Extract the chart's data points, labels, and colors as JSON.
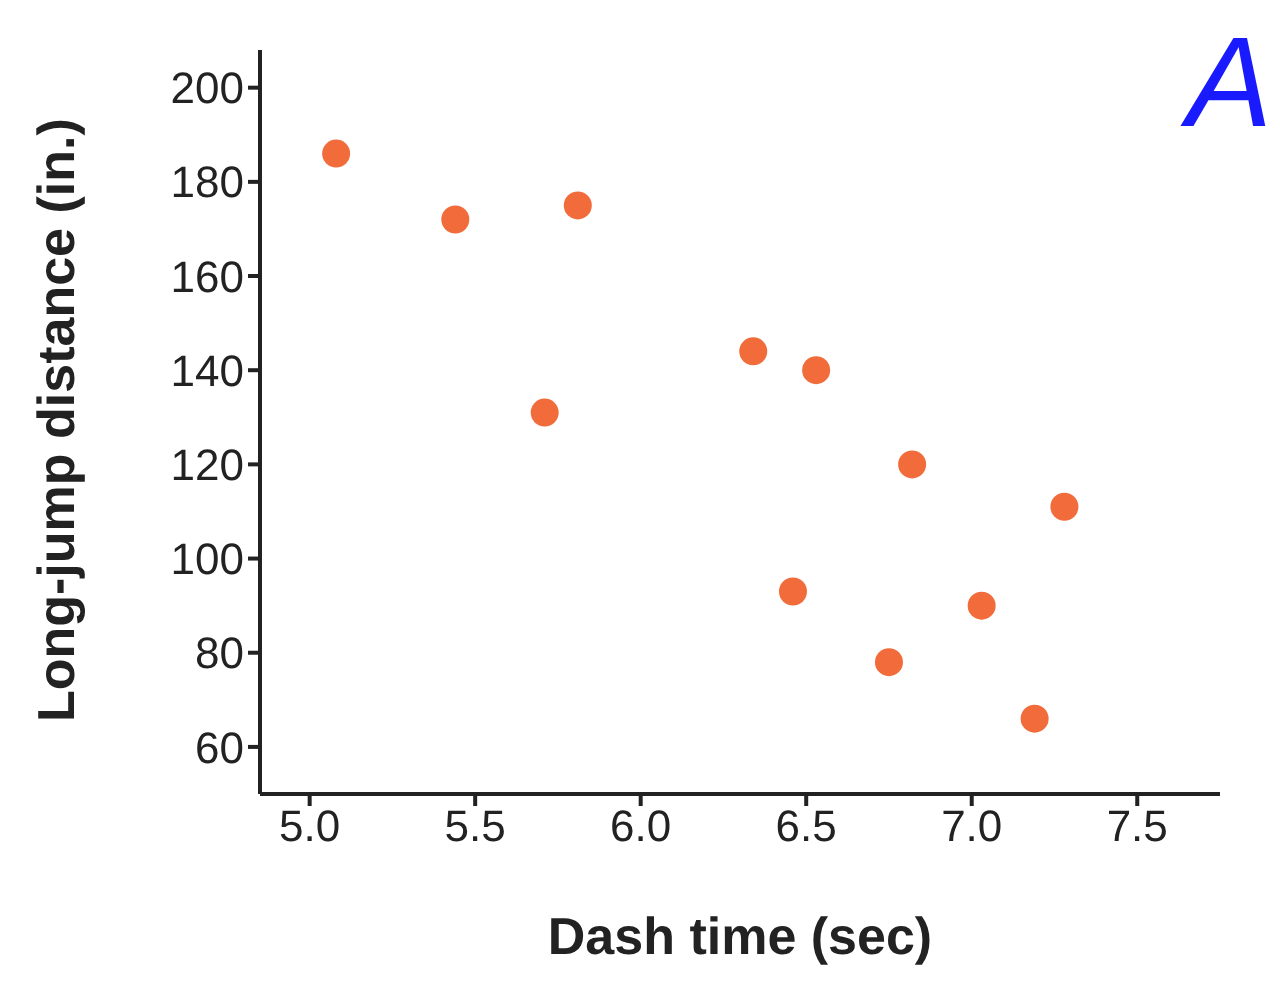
{
  "chart_data": {
    "type": "scatter",
    "xlabel": "Dash time (sec)",
    "ylabel": "Long-jump distance (in.)",
    "annotations": [
      "A"
    ],
    "x": [
      5.08,
      5.44,
      5.81,
      5.71,
      6.34,
      6.53,
      6.82,
      7.28,
      6.46,
      7.03,
      6.75,
      7.19
    ],
    "values": [
      186,
      172,
      175,
      131,
      144,
      140,
      120,
      111,
      93,
      90,
      78,
      66
    ],
    "color": "#f26b3a",
    "marker": "circle",
    "grid": false,
    "legend": false,
    "xlim": [
      4.85,
      7.75
    ],
    "xticks": [
      {
        "value": 5,
        "label": "5.0"
      },
      {
        "value": 5.5,
        "label": "5.5"
      },
      {
        "value": 6,
        "label": "6.0"
      },
      {
        "value": 6.5,
        "label": "6.5"
      },
      {
        "value": 7,
        "label": "7.0"
      },
      {
        "value": 7.5,
        "label": "7.5"
      }
    ],
    "ylim": [
      50,
      208
    ],
    "yticks": [
      60,
      80,
      100,
      120,
      140,
      160,
      180,
      200
    ]
  }
}
